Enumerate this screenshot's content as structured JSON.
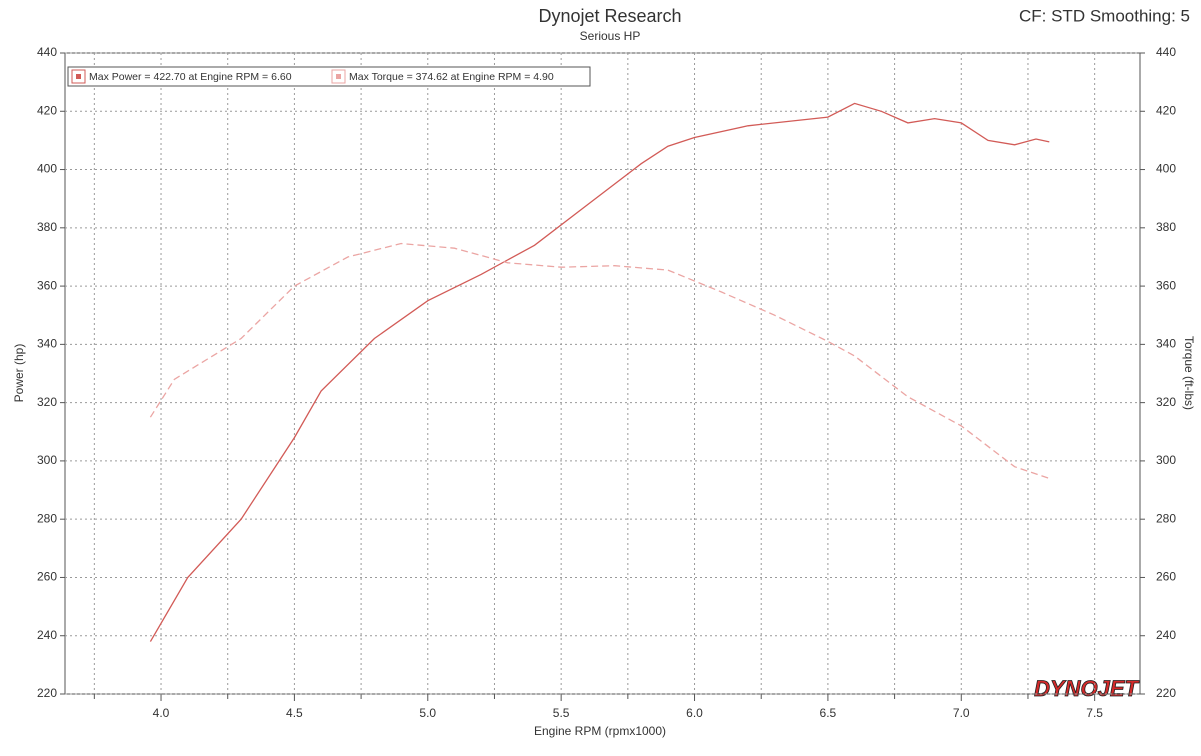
{
  "chart_data": {
    "type": "line",
    "title": "Dynojet Research",
    "subtitle": "Serious HP",
    "corner_note": "CF: STD Smoothing: 5",
    "x_label": "Engine RPM (rpmx1000)",
    "y_label": "Power (hp)",
    "y2_label": "Torque (ft-lbs)",
    "logo": "DYNOJET",
    "xlim": [
      3.64,
      7.67
    ],
    "xticks": [
      {
        "value": 4,
        "label": "4.0"
      },
      4.5,
      {
        "value": 5,
        "label": "5.0"
      },
      5.5,
      {
        "value": 6,
        "label": "6.0"
      },
      6.5,
      {
        "value": 7,
        "label": "7.0"
      },
      7.5
    ],
    "xminor_ticks": [
      3.75,
      4.25,
      4.75,
      5.25,
      5.75,
      6.25,
      6.75,
      7.25
    ],
    "ylim": [
      220,
      440
    ],
    "yticks": [
      220,
      240,
      260,
      280,
      300,
      320,
      340,
      360,
      380,
      400,
      420,
      440
    ],
    "y2lim": [
      220,
      440
    ],
    "y2ticks": [
      220,
      240,
      260,
      280,
      300,
      320,
      340,
      360,
      380,
      400,
      420,
      440
    ],
    "grid": true,
    "legend": "top-left",
    "series": [
      {
        "name": "Max Power = 422.70 at Engine RPM = 6.60",
        "color": "#d25b57",
        "dashed": false,
        "x": [
          3.96,
          4.1,
          4.3,
          4.5,
          4.6,
          4.8,
          5.0,
          5.2,
          5.4,
          5.6,
          5.8,
          5.9,
          6.0,
          6.2,
          6.4,
          6.5,
          6.6,
          6.7,
          6.8,
          6.9,
          7.0,
          7.1,
          7.2,
          7.28,
          7.33
        ],
        "values": [
          238,
          260,
          280,
          308,
          324,
          342,
          355,
          364,
          374,
          388,
          402,
          408,
          411,
          415,
          417,
          418,
          422.7,
          420,
          416,
          417.5,
          416,
          410,
          408.5,
          410.5,
          409.5
        ]
      },
      {
        "name": "Max Torque = 374.62 at Engine RPM = 4.90",
        "color": "#eba5a3",
        "dashed": true,
        "axis": "y2",
        "x": [
          3.96,
          4.05,
          4.3,
          4.5,
          4.7,
          4.9,
          5.1,
          5.3,
          5.5,
          5.7,
          5.9,
          6.1,
          6.3,
          6.5,
          6.6,
          6.8,
          7.0,
          7.2,
          7.33
        ],
        "values": [
          315,
          328,
          342,
          360,
          370,
          374.62,
          373,
          368,
          366.5,
          367,
          365.5,
          358,
          350,
          341,
          336,
          322,
          312,
          298,
          294
        ]
      }
    ]
  }
}
